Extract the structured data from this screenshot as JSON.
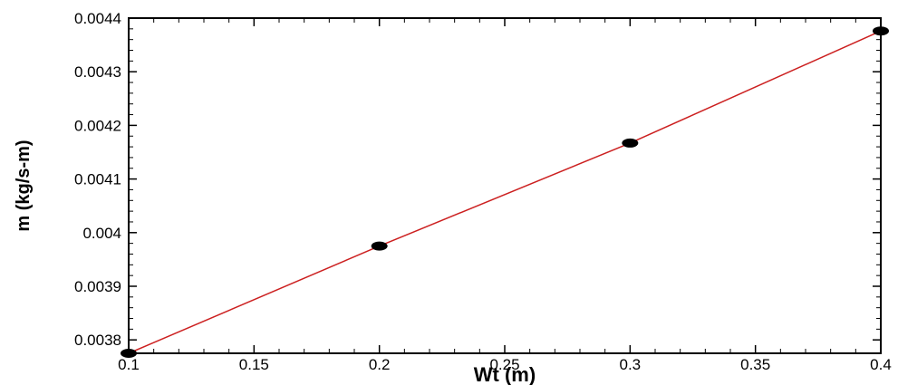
{
  "chart_data": {
    "type": "line",
    "xlabel": "Wt (m)",
    "ylabel": "m (kg/s-m)",
    "xlim": [
      0.1,
      0.4
    ],
    "ylim": [
      0.003775,
      0.0044
    ],
    "x_ticks": [
      0.1,
      0.15,
      0.2,
      0.25,
      0.3,
      0.35,
      0.4
    ],
    "x_tick_labels": [
      "0.1",
      "0.15",
      "0.2",
      "0.25",
      "0.3",
      "0.35",
      "0.4"
    ],
    "y_ticks": [
      0.0038,
      0.0039,
      0.004,
      0.0041,
      0.0042,
      0.0043,
      0.0044
    ],
    "y_tick_labels": [
      "0.0038",
      "0.0039",
      "0.004",
      "0.0041",
      "0.0042",
      "0.0043",
      "0.0044"
    ],
    "grid": false,
    "legend": "none",
    "series": [
      {
        "x": [
          0.1,
          0.2,
          0.3,
          0.4
        ],
        "values": [
          0.003775,
          0.003975,
          0.004167,
          0.004376
        ],
        "line_color": "#cc2020",
        "marker_color": "#000000",
        "marker": "filled-ellipse"
      }
    ]
  }
}
